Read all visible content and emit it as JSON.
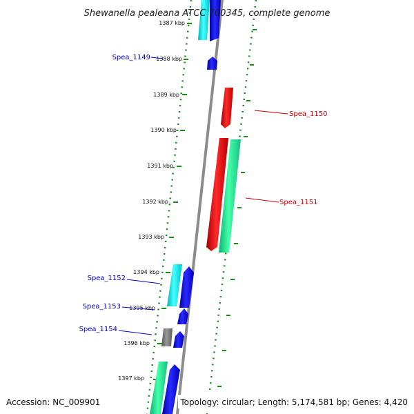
{
  "title": "Shewanella pealeana ATCC 700345, complete genome",
  "footer": {
    "accession": "Accession: NC_009901",
    "summary": "Topology: circular; Length: 5,174,581 bp; Genes: 4,420"
  },
  "ticks": [
    "1387 kbp",
    "1388 kbp",
    "1389 kbp",
    "1390 kbp",
    "1391 kbp",
    "1392 kbp",
    "1393 kbp",
    "1394 kbp",
    "1395 kbp",
    "1396 kbp",
    "1397 kbp"
  ],
  "labels": [
    {
      "text": "Spea_1149",
      "color": "#0000cc"
    },
    {
      "text": "Spea_1150",
      "color": "#cc0000"
    },
    {
      "text": "Spea_1151",
      "color": "#cc0000"
    },
    {
      "text": "Spea_1152",
      "color": "#0000cc"
    },
    {
      "text": "Spea_1153",
      "color": "#0000cc"
    },
    {
      "text": "Spea_1154",
      "color": "#0000cc"
    }
  ],
  "colors": {
    "backbone": "#8c8c8c",
    "dotted_ring": "#1a8c1a",
    "cds_forward": "#ee0000",
    "cds_reverse": "#0000ee",
    "rna_forward": "#33ee99",
    "rna_reverse": "#22eeee",
    "other": "#777777"
  }
}
